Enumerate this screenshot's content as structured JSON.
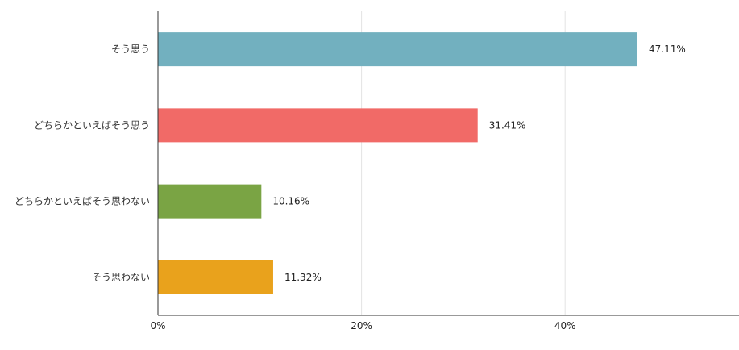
{
  "chart_data": {
    "type": "bar",
    "orientation": "horizontal",
    "categories": [
      "そう思う",
      "どちらかといえばそう思う",
      "どちらかといえばそう思わない",
      "そう思わない"
    ],
    "values": [
      47.11,
      31.41,
      10.16,
      11.32
    ],
    "value_labels": [
      "47.11%",
      "31.41%",
      "10.16%",
      "11.32%"
    ],
    "colors": [
      "#72b0bf",
      "#f16a67",
      "#7aa444",
      "#e9a21c"
    ],
    "xlim": [
      0,
      57
    ],
    "xticks": [
      0,
      20,
      40
    ],
    "xtick_labels": [
      "0%",
      "20%",
      "40%"
    ],
    "grid": true,
    "title": "",
    "xlabel": "",
    "ylabel": ""
  }
}
